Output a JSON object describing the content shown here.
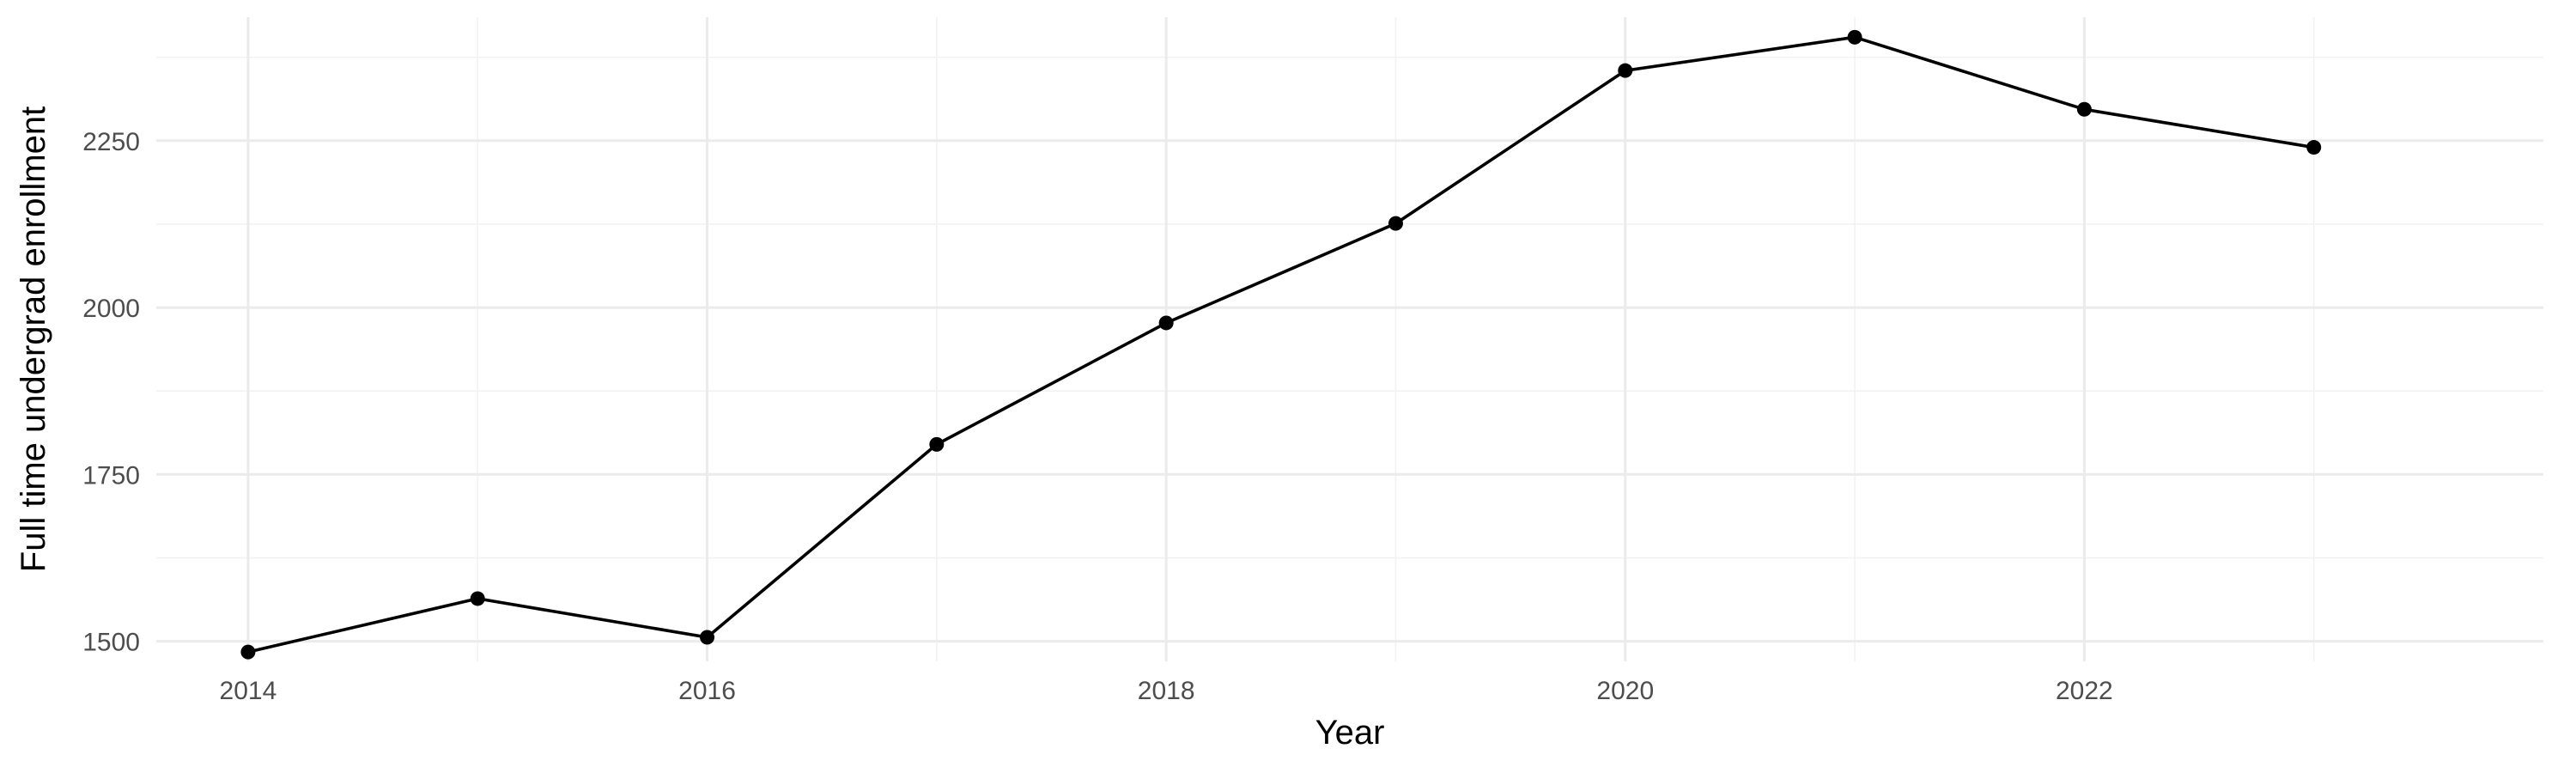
{
  "chart_data": {
    "type": "line",
    "title": "",
    "xlabel": "Year",
    "ylabel": "Full time undergrad enrollment",
    "x": [
      2014,
      2015,
      2016,
      2017,
      2018,
      2019,
      2020,
      2021,
      2022,
      2023
    ],
    "series": [
      {
        "values": [
          1484,
          1564,
          1506,
          1795,
          1977,
          2126,
          2355,
          2405,
          2297,
          2240
        ],
        "color": "#000000"
      }
    ],
    "xlim": [
      2013.6,
      2024.0
    ],
    "ylim": [
      1470,
      2435
    ],
    "x_ticks": [
      2014,
      2016,
      2018,
      2020,
      2022
    ],
    "x_tick_labels": [
      "2014",
      "2016",
      "2018",
      "2020",
      "2022"
    ],
    "y_ticks": [
      1500,
      1750,
      2000,
      2250
    ],
    "y_tick_labels": [
      "1500",
      "1750",
      "2000",
      "2250"
    ],
    "grid": true,
    "legend": "none",
    "marker": "point"
  }
}
